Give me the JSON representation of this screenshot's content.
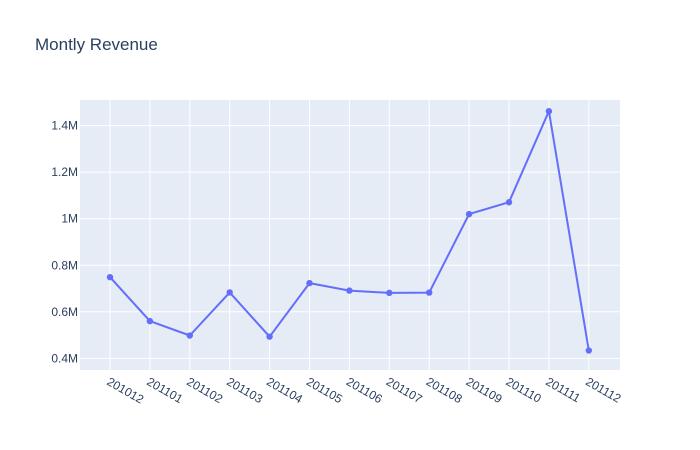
{
  "chart_data": {
    "type": "line",
    "title": "Montly Revenue",
    "xlabel": "",
    "ylabel": "",
    "categories": [
      "201012",
      "201101",
      "201102",
      "201103",
      "201104",
      "201105",
      "201106",
      "201107",
      "201108",
      "201109",
      "201110",
      "201111",
      "201112"
    ],
    "series": [
      {
        "values": [
          748957,
          560000,
          498063,
          683267,
          493207,
          723334,
          691123,
          681300,
          682681,
          1019688,
          1070705,
          1461756,
          433668
        ]
      }
    ],
    "ylim": [
      350000,
      1510000
    ],
    "yticks": [
      400000,
      600000,
      800000,
      1000000,
      1200000,
      1400000
    ],
    "ytick_labels": [
      "0.4M",
      "0.6M",
      "0.8M",
      "1M",
      "1.2M",
      "1.4M"
    ],
    "grid": true,
    "colors": {
      "line": "#636efa",
      "plot_bg": "#e5ecf6",
      "text": "#2a3f5f"
    }
  }
}
